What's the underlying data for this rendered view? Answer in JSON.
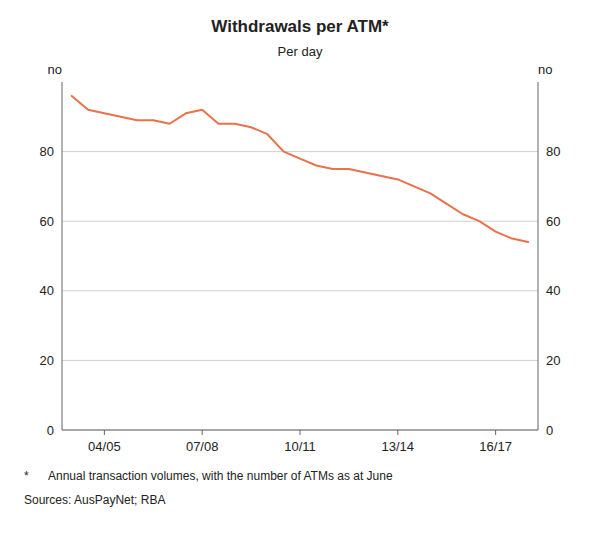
{
  "chart_data": {
    "type": "line",
    "title": "Withdrawals per ATM*",
    "subtitle": "Per day",
    "ylabel": "no",
    "y2label": "no",
    "annotations": [
      "*      Annual transaction volumes, with the number of ATMs as at June",
      "Sources: AusPayNet; RBA"
    ],
    "color": "#e8724a",
    "x": [
      2003.0,
      2003.5,
      2004.0,
      2004.5,
      2005.0,
      2005.5,
      2006.0,
      2006.5,
      2007.0,
      2007.5,
      2008.0,
      2008.5,
      2009.0,
      2009.5,
      2010.0,
      2010.5,
      2011.0,
      2011.5,
      2012.0,
      2012.5,
      2013.0,
      2013.5,
      2014.0,
      2014.5,
      2015.0,
      2015.5,
      2016.0,
      2016.5,
      2017.0
    ],
    "values": [
      96,
      92,
      91,
      90,
      89,
      89,
      88,
      91,
      92,
      88,
      88,
      87,
      85,
      80,
      78,
      76,
      75,
      75,
      74,
      73,
      72,
      70,
      68,
      65,
      62,
      60,
      57,
      55,
      54
    ],
    "xlim": [
      2002.7,
      2017.3
    ],
    "xticks": [
      {
        "value": 2004,
        "label": "04/05"
      },
      {
        "value": 2007,
        "label": "07/08"
      },
      {
        "value": 2010,
        "label": "10/11"
      },
      {
        "value": 2013,
        "label": "13/14"
      },
      {
        "value": 2016,
        "label": "16/17"
      }
    ],
    "ylim": [
      0,
      100
    ],
    "yticks": [
      0,
      20,
      40,
      60,
      80
    ],
    "y2lim": [
      0,
      100
    ],
    "y2ticks": [
      0,
      20,
      40,
      60,
      80
    ],
    "grid": true
  }
}
